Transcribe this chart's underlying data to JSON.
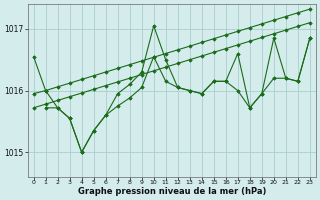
{
  "background_color": "#d4ecec",
  "grid_color": "#aacece",
  "line_color": "#1a6b1a",
  "marker_color": "#1a6b1a",
  "xlabel": "Graphe pression niveau de la mer (hPa)",
  "ylim": [
    1014.6,
    1017.4
  ],
  "yticks": [
    1015,
    1016,
    1017
  ],
  "xlim": [
    -0.5,
    23.5
  ],
  "xticks": [
    0,
    1,
    2,
    3,
    4,
    5,
    6,
    7,
    8,
    9,
    10,
    11,
    12,
    13,
    14,
    15,
    16,
    17,
    18,
    19,
    20,
    21,
    22,
    23
  ],
  "series": [
    {
      "x": [
        0,
        1,
        2,
        3,
        4,
        5,
        6,
        7,
        8,
        9,
        10,
        11,
        12,
        13,
        14,
        15,
        16,
        17,
        18,
        19,
        20,
        21,
        22,
        23
      ],
      "y": [
        1015.72,
        1015.78,
        1015.84,
        1015.9,
        1015.96,
        1016.02,
        1016.08,
        1016.14,
        1016.2,
        1016.26,
        1016.32,
        1016.38,
        1016.44,
        1016.5,
        1016.56,
        1016.62,
        1016.68,
        1016.74,
        1016.8,
        1016.86,
        1016.92,
        1016.98,
        1017.04,
        1017.1
      ]
    },
    {
      "x": [
        0,
        1,
        2,
        3,
        4,
        5,
        6,
        7,
        8,
        9,
        10,
        11,
        12,
        13,
        14,
        15,
        16,
        17,
        18,
        19,
        20,
        21,
        22,
        23
      ],
      "y": [
        1015.95,
        1016.0,
        1016.06,
        1016.12,
        1016.18,
        1016.24,
        1016.3,
        1016.36,
        1016.42,
        1016.48,
        1016.54,
        1016.6,
        1016.66,
        1016.72,
        1016.78,
        1016.84,
        1016.9,
        1016.96,
        1017.02,
        1017.08,
        1017.14,
        1017.2,
        1017.26,
        1017.32
      ]
    },
    {
      "x": [
        0,
        1,
        2,
        3,
        4,
        5,
        6,
        7,
        8,
        9,
        10,
        11,
        12,
        13,
        14,
        15,
        16,
        17,
        18,
        19,
        20,
        21,
        22,
        23
      ],
      "y": [
        1016.55,
        1016.0,
        1015.72,
        1015.55,
        1015.0,
        1015.35,
        1015.6,
        1015.95,
        1016.1,
        1016.3,
        1017.05,
        1016.5,
        1016.05,
        1016.0,
        1015.95,
        1016.15,
        1016.15,
        1016.0,
        1015.72,
        1015.95,
        1016.2,
        1016.2,
        1016.15,
        1016.85
      ]
    },
    {
      "x": [
        1,
        2,
        3,
        4,
        5,
        6,
        7,
        8,
        9,
        10,
        11,
        12,
        13,
        14,
        15,
        16,
        17,
        18,
        19,
        20,
        21,
        22,
        23
      ],
      "y": [
        1015.72,
        1015.72,
        1015.55,
        1015.0,
        1015.35,
        1015.6,
        1015.75,
        1015.88,
        1016.05,
        1016.55,
        1016.15,
        1016.05,
        1016.0,
        1015.95,
        1016.15,
        1016.15,
        1016.6,
        1015.72,
        1015.95,
        1016.85,
        1016.2,
        1016.15,
        1016.85
      ]
    }
  ]
}
